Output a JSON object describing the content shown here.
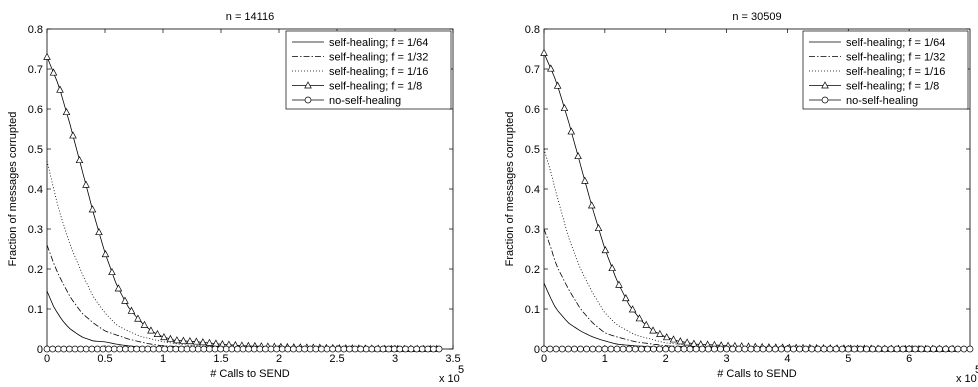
{
  "chart_data": [
    {
      "type": "line",
      "title": "n = 14116",
      "xlabel": "# Calls to SEND",
      "ylabel": "Fraction of messages corrupted",
      "x_exponent_label": "x 10",
      "x_exponent": "5",
      "xlim": [
        0,
        3.5
      ],
      "ylim": [
        0,
        0.8
      ],
      "x_ticks": [
        "0",
        "0.5",
        "1",
        "1.5",
        "2",
        "2.5",
        "3",
        "3.5"
      ],
      "x_tick_values": [
        0,
        0.5,
        1,
        1.5,
        2,
        2.5,
        3,
        3.5
      ],
      "y_ticks": [
        "0",
        "0.1",
        "0.2",
        "0.3",
        "0.4",
        "0.5",
        "0.6",
        "0.7",
        "0.8"
      ],
      "y_tick_values": [
        0,
        0.1,
        0.2,
        0.3,
        0.4,
        0.5,
        0.6,
        0.7,
        0.8
      ],
      "legend_position": "top-right",
      "series": [
        {
          "name": "self-healing; f = 1/64",
          "style": "solid",
          "marker": "none",
          "x": [
            0,
            0.05,
            0.1,
            0.15,
            0.2,
            0.3,
            0.4,
            0.5,
            0.6,
            0.7,
            0.8,
            1.0,
            1.5,
            2.0,
            3.38
          ],
          "y": [
            0.145,
            0.11,
            0.085,
            0.065,
            0.05,
            0.03,
            0.02,
            0.018,
            0.012,
            0.008,
            0.005,
            0.003,
            0.001,
            0,
            0
          ]
        },
        {
          "name": "self-healing; f = 1/32",
          "style": "dashdot",
          "marker": "none",
          "x": [
            0,
            0.05,
            0.1,
            0.2,
            0.3,
            0.4,
            0.5,
            0.6,
            0.7,
            0.8,
            0.9,
            1.0,
            1.2,
            1.5,
            2.0,
            3.38
          ],
          "y": [
            0.26,
            0.22,
            0.185,
            0.13,
            0.09,
            0.065,
            0.045,
            0.035,
            0.025,
            0.018,
            0.012,
            0.008,
            0.005,
            0.002,
            0,
            0
          ]
        },
        {
          "name": "self-healing; f = 1/16",
          "style": "dotted",
          "marker": "none",
          "x": [
            0,
            0.05,
            0.1,
            0.2,
            0.3,
            0.4,
            0.5,
            0.6,
            0.7,
            0.8,
            0.9,
            1.0,
            1.2,
            1.5,
            2.0,
            3.38
          ],
          "y": [
            0.47,
            0.41,
            0.35,
            0.26,
            0.19,
            0.13,
            0.09,
            0.06,
            0.045,
            0.032,
            0.025,
            0.018,
            0.01,
            0.005,
            0.002,
            0
          ]
        },
        {
          "name": "self-healing; f = 1/8",
          "style": "solid",
          "marker": "triangle",
          "x": [
            0,
            0.1,
            0.2,
            0.3,
            0.4,
            0.5,
            0.6,
            0.7,
            0.8,
            0.9,
            1.0,
            1.1,
            1.2,
            1.3,
            1.4,
            1.5,
            1.7,
            2.0,
            2.5,
            3.0,
            3.38
          ],
          "y": [
            0.73,
            0.66,
            0.56,
            0.45,
            0.34,
            0.24,
            0.16,
            0.105,
            0.07,
            0.045,
            0.03,
            0.022,
            0.02,
            0.018,
            0.015,
            0.012,
            0.008,
            0.005,
            0.002,
            0,
            0
          ]
        },
        {
          "name": "no-self-healing",
          "style": "solid",
          "marker": "circle",
          "x": [
            0,
            3.38
          ],
          "y": [
            0,
            0
          ]
        }
      ]
    },
    {
      "type": "line",
      "title": "n = 30509",
      "xlabel": "# Calls to SEND",
      "ylabel": "Fraction of messages corrupted",
      "x_exponent_label": "x 10",
      "x_exponent": "5",
      "xlim": [
        0,
        7
      ],
      "ylim": [
        0,
        0.8
      ],
      "x_ticks": [
        "0",
        "1",
        "2",
        "3",
        "4",
        "5",
        "6"
      ],
      "x_tick_values": [
        0,
        1,
        2,
        3,
        4,
        5,
        6
      ],
      "y_ticks": [
        "0",
        "0.1",
        "0.2",
        "0.3",
        "0.4",
        "0.5",
        "0.6",
        "0.7",
        "0.8"
      ],
      "y_tick_values": [
        0,
        0.1,
        0.2,
        0.3,
        0.4,
        0.5,
        0.6,
        0.7,
        0.8
      ],
      "legend_position": "top-right",
      "series": [
        {
          "name": "self-healing; f = 1/64",
          "style": "solid",
          "marker": "none",
          "x": [
            0,
            0.1,
            0.2,
            0.4,
            0.6,
            0.8,
            1.0,
            1.2,
            1.5,
            2.0,
            3.0,
            7.0
          ],
          "y": [
            0.165,
            0.13,
            0.1,
            0.065,
            0.045,
            0.03,
            0.02,
            0.012,
            0.008,
            0.003,
            0.001,
            0
          ]
        },
        {
          "name": "self-healing; f = 1/32",
          "style": "dashdot",
          "marker": "none",
          "x": [
            0,
            0.1,
            0.2,
            0.4,
            0.6,
            0.8,
            1.0,
            1.2,
            1.5,
            2.0,
            3.0,
            7.0
          ],
          "y": [
            0.3,
            0.26,
            0.21,
            0.15,
            0.1,
            0.065,
            0.04,
            0.03,
            0.018,
            0.008,
            0.002,
            0
          ]
        },
        {
          "name": "self-healing; f = 1/16",
          "style": "dotted",
          "marker": "none",
          "x": [
            0,
            0.1,
            0.2,
            0.4,
            0.6,
            0.8,
            1.0,
            1.2,
            1.5,
            2.0,
            2.5,
            3.0,
            7.0
          ],
          "y": [
            0.5,
            0.45,
            0.39,
            0.28,
            0.2,
            0.14,
            0.09,
            0.06,
            0.035,
            0.015,
            0.008,
            0.003,
            0
          ]
        },
        {
          "name": "self-healing; f = 1/8",
          "style": "solid",
          "marker": "triangle",
          "x": [
            0,
            0.2,
            0.4,
            0.6,
            0.8,
            1.0,
            1.2,
            1.4,
            1.6,
            1.8,
            2.0,
            2.2,
            2.5,
            2.8,
            3.0,
            3.5,
            4.0,
            5.0,
            6.0,
            7.0
          ],
          "y": [
            0.74,
            0.67,
            0.57,
            0.46,
            0.35,
            0.25,
            0.17,
            0.11,
            0.07,
            0.045,
            0.03,
            0.02,
            0.012,
            0.01,
            0.008,
            0.005,
            0.003,
            0.001,
            0,
            0
          ]
        },
        {
          "name": "no-self-healing",
          "style": "solid",
          "marker": "circle",
          "x": [
            0,
            7.0
          ],
          "y": [
            0,
            0
          ]
        }
      ]
    }
  ]
}
